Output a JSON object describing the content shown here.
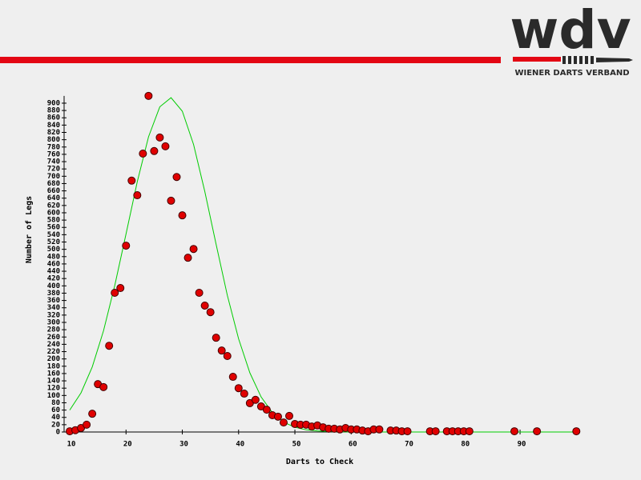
{
  "logo": {
    "text": "wdv",
    "subtitle": "WIENER DARTS VERBAND"
  },
  "chart_data": {
    "type": "scatter",
    "xlabel": "Darts to Check",
    "ylabel": "Number of Legs",
    "xlim": [
      9,
      100
    ],
    "ylim": [
      0,
      920
    ],
    "xticks": [
      10,
      20,
      30,
      40,
      50,
      60,
      70,
      80,
      90
    ],
    "yticks": [
      0,
      20,
      40,
      60,
      80,
      100,
      120,
      140,
      160,
      180,
      200,
      220,
      240,
      260,
      280,
      300,
      320,
      340,
      360,
      380,
      400,
      420,
      440,
      460,
      480,
      500,
      520,
      540,
      560,
      580,
      600,
      620,
      640,
      660,
      680,
      700,
      720,
      740,
      760,
      780,
      800,
      820,
      840,
      860,
      880,
      900
    ],
    "series": [
      {
        "kind": "points",
        "color": "#e00000",
        "x": [
          10,
          11,
          12,
          13,
          14,
          15,
          16,
          17,
          18,
          19,
          20,
          21,
          22,
          23,
          24,
          25,
          26,
          27,
          28,
          29,
          30,
          31,
          32,
          33,
          34,
          35,
          36,
          37,
          38,
          39,
          40,
          41,
          42,
          43,
          44,
          45,
          46,
          47,
          48,
          49,
          50,
          51,
          52,
          53,
          54,
          55,
          56,
          57,
          58,
          59,
          60,
          61,
          62,
          63,
          64,
          65,
          67,
          68,
          69,
          70,
          74,
          75,
          77,
          78,
          79,
          80,
          81,
          89,
          93,
          100
        ],
        "values": [
          2,
          5,
          11,
          20,
          50,
          131,
          123,
          236,
          381,
          394,
          510,
          688,
          648,
          762,
          920,
          769,
          806,
          782,
          633,
          698,
          593,
          477,
          501,
          381,
          346,
          328,
          258,
          223,
          208,
          151,
          120,
          105,
          79,
          88,
          70,
          61,
          46,
          42,
          26,
          44,
          22,
          20,
          20,
          15,
          18,
          13,
          9,
          9,
          7,
          11,
          7,
          7,
          4,
          2,
          7,
          7,
          4,
          4,
          2,
          2,
          2,
          2,
          2,
          2,
          2,
          2,
          2,
          2,
          2,
          2
        ]
      },
      {
        "kind": "line",
        "color": "#00cc00",
        "x": [
          10,
          12,
          14,
          16,
          18,
          20,
          22,
          24,
          26,
          28,
          30,
          32,
          34,
          36,
          38,
          40,
          42,
          44,
          46,
          48,
          50,
          52,
          54,
          56,
          60,
          80,
          100
        ],
        "values": [
          60,
          107,
          178,
          277,
          401,
          542,
          685,
          808,
          890,
          915,
          878,
          787,
          658,
          514,
          374,
          255,
          162,
          96,
          53,
          27,
          13,
          6,
          3,
          1,
          0,
          0,
          0
        ]
      }
    ]
  }
}
